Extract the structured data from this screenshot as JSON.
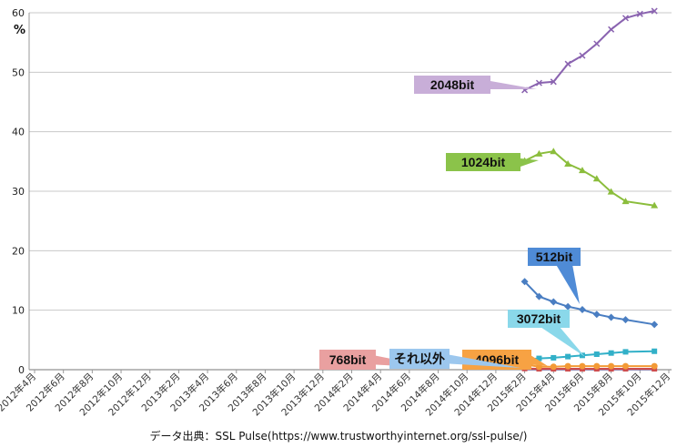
{
  "chart_data": {
    "type": "line",
    "ylabel": "%",
    "ylim": [
      0,
      60
    ],
    "yticks": [
      0,
      10,
      20,
      30,
      40,
      50,
      60
    ],
    "grid": true,
    "categories": [
      "2012年4月",
      "2012年6月",
      "2012年8月",
      "2012年10月",
      "2012年12月",
      "2013年2月",
      "2013年4月",
      "2013年6月",
      "2013年8月",
      "2013年10月",
      "2013年12月",
      "2014年2月",
      "2014年4月",
      "2014年6月",
      "2014年8月",
      "2014年10月",
      "2014年12月",
      "2015年2月",
      "2015年4月",
      "2015年6月",
      "2015年8月",
      "2015年10月",
      "2015年12月"
    ],
    "x_values": [
      "2015年2月",
      "2015年3月",
      "2015年4月",
      "2015年5月",
      "2015年6月",
      "2015年7月",
      "2015年8月",
      "2015年9月",
      "2015年10月",
      "2015年11月",
      "2015年12月"
    ],
    "series": [
      {
        "name": "2048bit",
        "color": "#8a63b0",
        "marker": "x",
        "label_color": "#c8aed8",
        "values": [
          47.0,
          48.2,
          48.4,
          51.4,
          52.8,
          54.8,
          57.2,
          59.1,
          59.8,
          60.3,
          null
        ]
      },
      {
        "name": "1024bit",
        "color": "#8bbd3c",
        "marker": "triangle",
        "label_color": "#8bc34a",
        "values": [
          35.1,
          36.3,
          36.7,
          34.6,
          33.5,
          32.1,
          29.9,
          28.3,
          null,
          27.6,
          null
        ]
      },
      {
        "name": "512bit",
        "color": "#4a7ec2",
        "marker": "diamond",
        "label_color": "#4f8bd6",
        "values": [
          14.8,
          12.3,
          11.4,
          10.6,
          10.1,
          9.3,
          8.8,
          8.4,
          null,
          7.6,
          null
        ]
      },
      {
        "name": "3072bit",
        "color": "#32b0c8",
        "marker": "square",
        "label_color": "#8ad8ea",
        "values": [
          1.7,
          1.9,
          2.0,
          2.2,
          2.4,
          2.6,
          2.8,
          3.0,
          null,
          3.1,
          null
        ]
      },
      {
        "name": "4096bit",
        "color": "#f39a36",
        "marker": "circle",
        "label_color": "#f7a243",
        "values": [
          0.9,
          0.5,
          0.5,
          0.6,
          0.6,
          0.6,
          0.6,
          0.6,
          null,
          0.6,
          null
        ]
      },
      {
        "name": "768bit",
        "color": "#cf4d4d",
        "marker": "square",
        "label_color": "#e9a0a0",
        "values": [
          0.2,
          0.15,
          0.15,
          0.15,
          0.15,
          0.15,
          0.15,
          0.15,
          null,
          0.15,
          null
        ]
      },
      {
        "name": "それ以外",
        "color": "#7a6a9b",
        "marker": "dot",
        "label_color": "#9cc7ee",
        "values": [
          0.05,
          0.05,
          0.05,
          0.05,
          0.05,
          0.05,
          0.05,
          0.05,
          null,
          0.05,
          null
        ]
      }
    ],
    "source": "データ出典：SSL Pulse(https://www.trustworthyinternet.org/ssl-pulse/)"
  }
}
